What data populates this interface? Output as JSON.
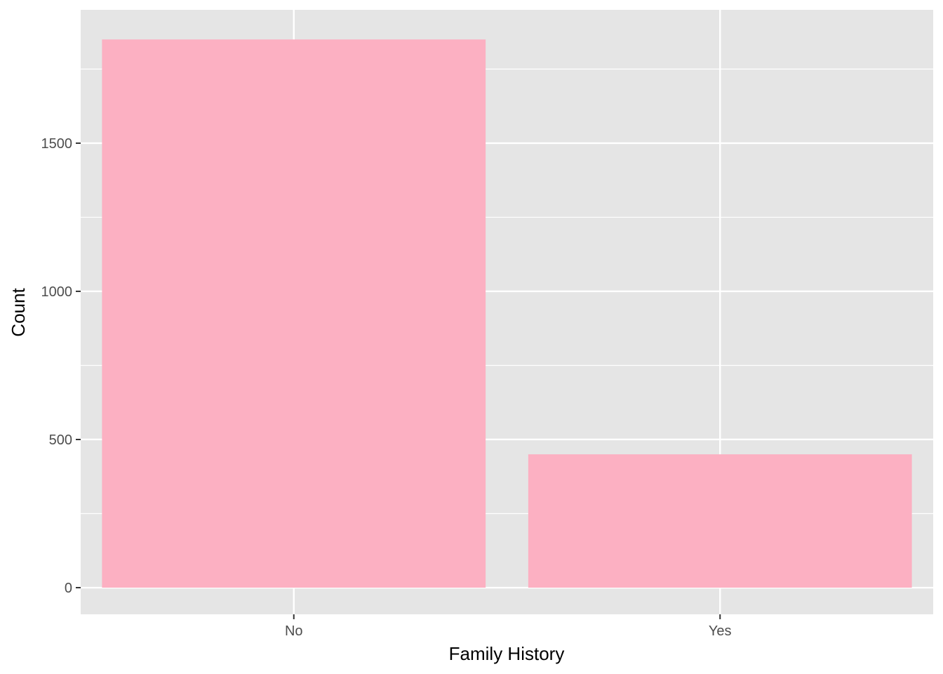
{
  "chart_data": {
    "type": "bar",
    "title": "",
    "xlabel": "Family History",
    "ylabel": "Count",
    "categories": [
      "No",
      "Yes"
    ],
    "values": [
      1850,
      450
    ],
    "ylim": [
      -90,
      1950
    ],
    "y_ticks": [
      0,
      500,
      1000,
      1500
    ],
    "y_minor_ticks": [
      250,
      750,
      1250,
      1750
    ],
    "grid": true,
    "legend": "none",
    "colors": {
      "bar": "#fcb0c2",
      "panel_background": "#e5e5e5",
      "grid": "#ffffff",
      "tick_text": "#4d4d4d",
      "tick_mark": "#333333"
    }
  }
}
